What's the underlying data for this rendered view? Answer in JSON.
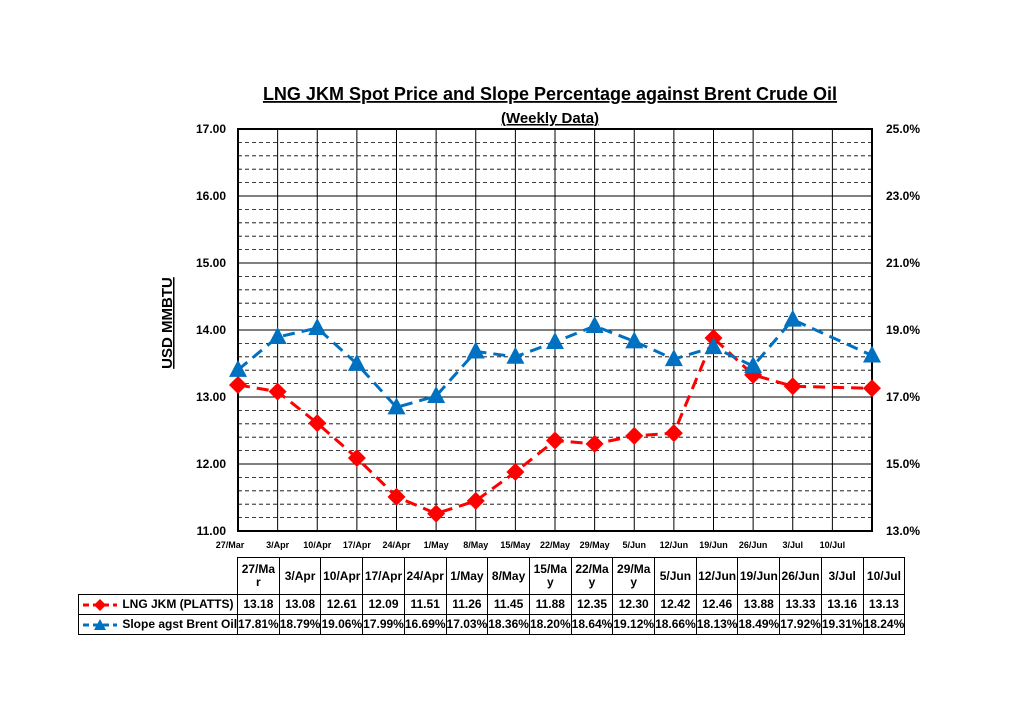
{
  "chart_data": {
    "type": "line",
    "title": "LNG JKM Spot Price and Slope Percentage against Brent Crude Oil",
    "subtitle": "(Weekly Data)",
    "ylabel": "USD MMBTU",
    "y2label": "",
    "ylim": [
      11,
      17
    ],
    "y2lim": [
      13,
      25
    ],
    "y_ticks": [
      "11.00",
      "12.00",
      "13.00",
      "14.00",
      "15.00",
      "16.00",
      "17.00"
    ],
    "y2_ticks": [
      "13.0%",
      "15.0%",
      "17.0%",
      "19.0%",
      "21.0%",
      "23.0%",
      "25.0%"
    ],
    "categories": [
      "27/Mar",
      "3/Apr",
      "10/Apr",
      "17/Apr",
      "24/Apr",
      "1/May",
      "8/May",
      "15/May",
      "22/May",
      "29/May",
      "5/Jun",
      "12/Jun",
      "19/Jun",
      "26/Jun",
      "3/Jul",
      "10/Jul"
    ],
    "grid": true,
    "legend": "table-below",
    "series": [
      {
        "name": "LNG JKM (PLATTS)",
        "axis": "left",
        "color": "#ff0000",
        "marker": "diamond",
        "style": "dashed",
        "values": [
          13.18,
          13.08,
          12.61,
          12.09,
          11.51,
          11.26,
          11.45,
          11.88,
          12.35,
          12.3,
          12.42,
          12.46,
          13.88,
          13.33,
          13.16,
          13.13
        ]
      },
      {
        "name": "Slope agst Brent Oil",
        "axis": "right",
        "color": "#0070c0",
        "marker": "triangle",
        "style": "dashed",
        "values": [
          17.81,
          18.79,
          19.06,
          17.99,
          16.69,
          17.03,
          18.36,
          18.2,
          18.64,
          19.12,
          18.66,
          18.13,
          18.49,
          17.92,
          19.31,
          18.24
        ]
      }
    ]
  },
  "table": {
    "headers": [
      "27/Ma r",
      "3/Apr",
      "10/Apr",
      "17/Apr",
      "24/Apr",
      "1/May",
      "8/May",
      "15/Ma y",
      "22/Ma y",
      "29/Ma y",
      "5/Jun",
      "12/Jun",
      "19/Jun",
      "26/Jun",
      "3/Jul",
      "10/Jul"
    ],
    "rows": [
      {
        "label": "LNG JKM (PLATTS)",
        "icon": "red-diamond-line",
        "values": [
          "13.18",
          "13.08",
          "12.61",
          "12.09",
          "11.51",
          "11.26",
          "11.45",
          "11.88",
          "12.35",
          "12.30",
          "12.42",
          "12.46",
          "13.88",
          "13.33",
          "13.16",
          "13.13"
        ]
      },
      {
        "label": "Slope agst Brent Oil",
        "icon": "blue-triangle-line",
        "values": [
          "17.81%",
          "18.79%",
          "19.06%",
          "17.99%",
          "16.69%",
          "17.03%",
          "18.36%",
          "18.20%",
          "18.64%",
          "19.12%",
          "18.66%",
          "18.13%",
          "18.49%",
          "17.92%",
          "19.31%",
          "18.24%"
        ]
      }
    ]
  }
}
